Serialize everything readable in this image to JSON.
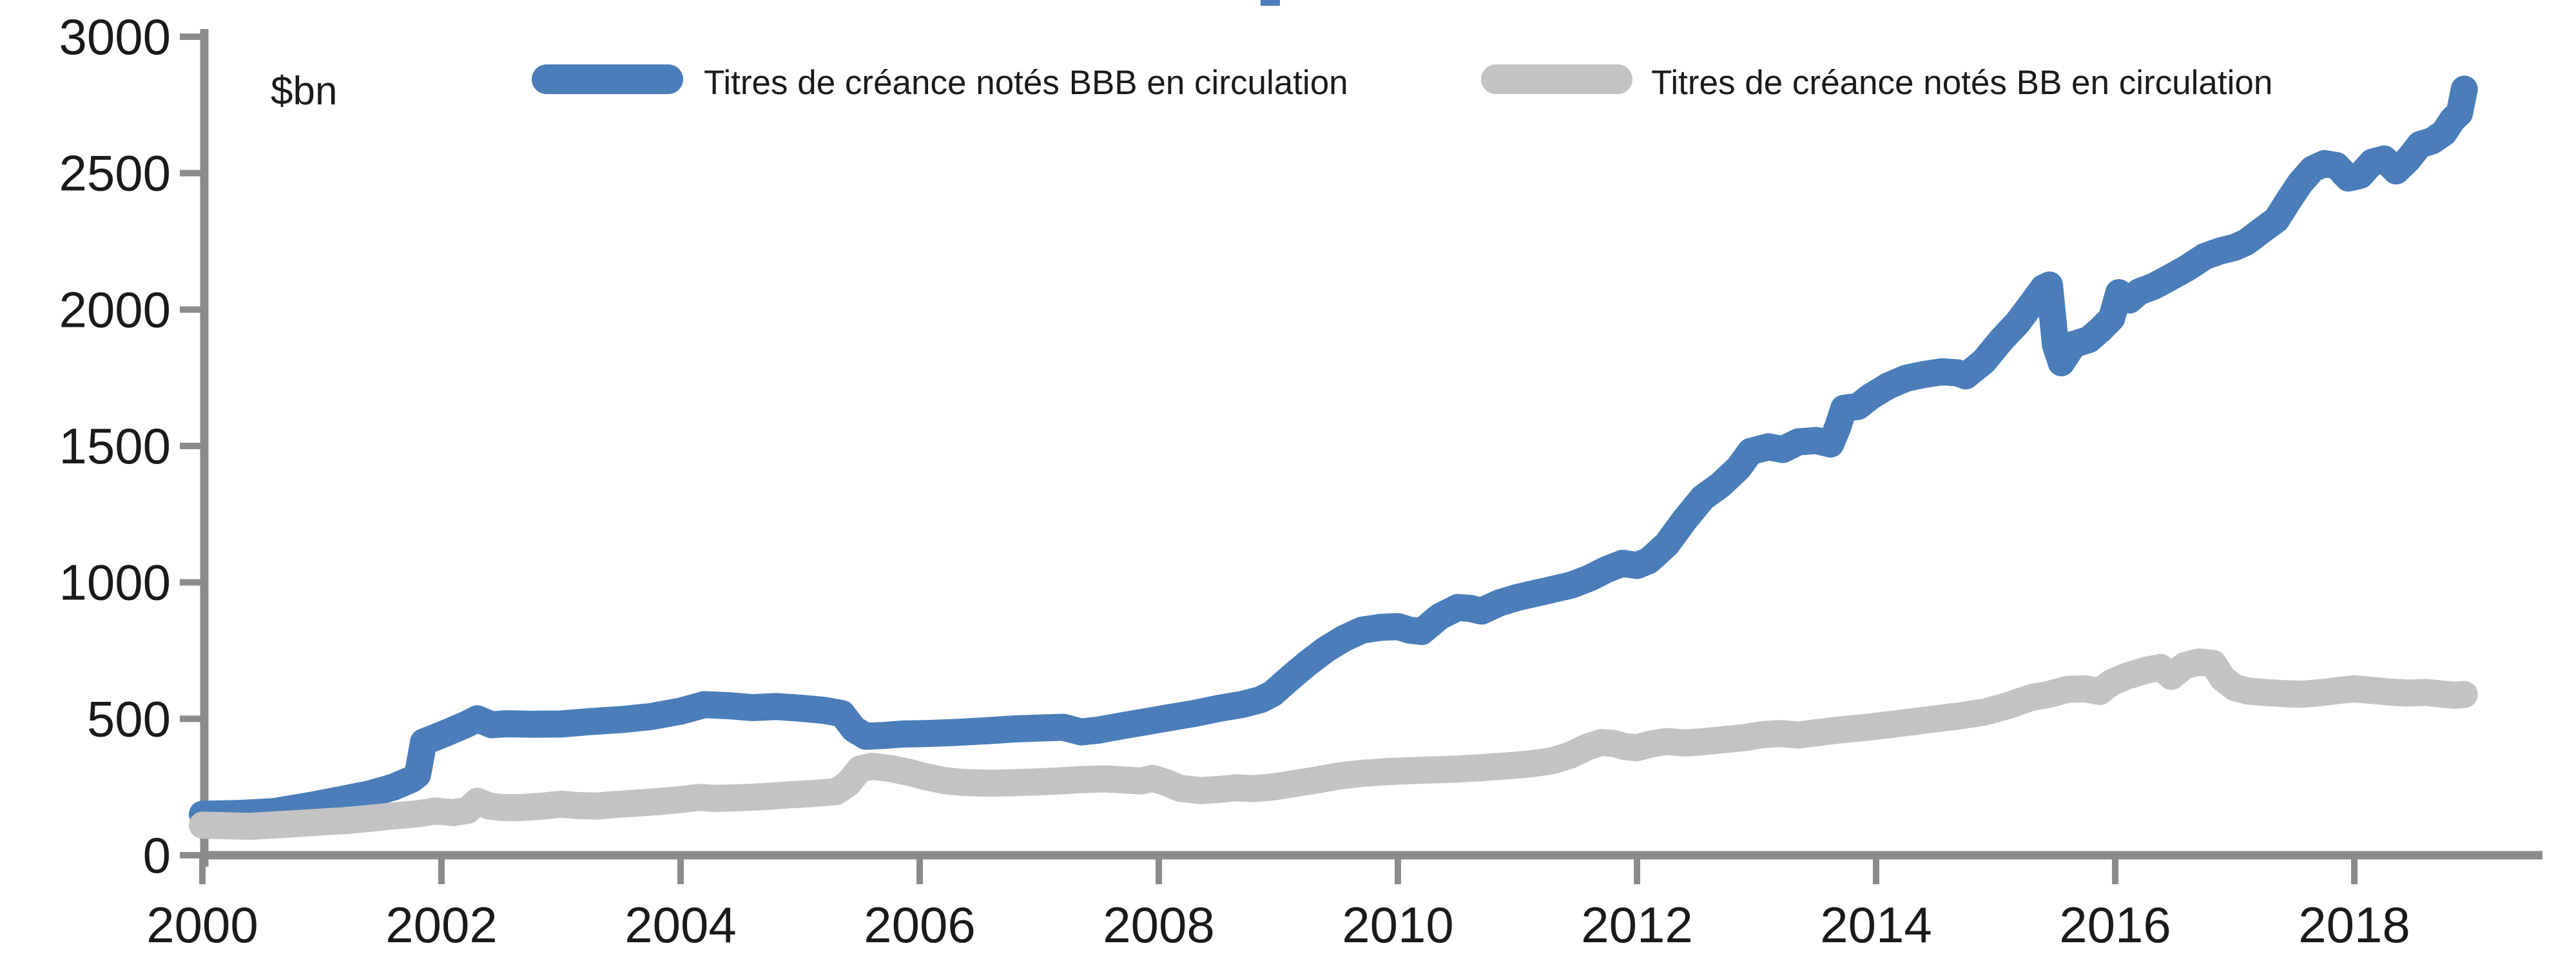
{
  "chart": {
    "colors": {
      "bbb_blue": "#4a7db9",
      "bb_gray": "#c3c3c3",
      "axis_gray": "#8b8b8b",
      "text": "#1a1a1a",
      "background": "#ffffff"
    },
    "artifact": "cropped-title-fragment"
  },
  "chart_data": {
    "type": "line",
    "title": "",
    "xlabel": "",
    "ylabel": "$bn",
    "xlim": [
      2000,
      2019.6
    ],
    "ylim": [
      0,
      3000
    ],
    "x_ticks": [
      2000,
      2002,
      2004,
      2006,
      2008,
      2010,
      2012,
      2014,
      2016,
      2018
    ],
    "y_ticks": [
      0,
      500,
      1000,
      1500,
      2000,
      2500,
      3000
    ],
    "grid": false,
    "legend_position": "top",
    "series": [
      {
        "name": "Titres de créance notés BBB en circulation",
        "color": "#4a7db9",
        "points": [
          [
            2000.0,
            150
          ],
          [
            2000.3,
            153
          ],
          [
            2000.6,
            160
          ],
          [
            2000.9,
            182
          ],
          [
            2001.15,
            203
          ],
          [
            2001.4,
            225
          ],
          [
            2001.6,
            250
          ],
          [
            2001.75,
            278
          ],
          [
            2001.8,
            295
          ],
          [
            2001.85,
            415
          ],
          [
            2001.95,
            432
          ],
          [
            2002.05,
            450
          ],
          [
            2002.2,
            478
          ],
          [
            2002.3,
            500
          ],
          [
            2002.42,
            478
          ],
          [
            2002.55,
            482
          ],
          [
            2002.75,
            480
          ],
          [
            2003.0,
            481
          ],
          [
            2003.25,
            490
          ],
          [
            2003.5,
            497
          ],
          [
            2003.75,
            508
          ],
          [
            2004.0,
            528
          ],
          [
            2004.2,
            552
          ],
          [
            2004.4,
            548
          ],
          [
            2004.6,
            541
          ],
          [
            2004.8,
            545
          ],
          [
            2005.0,
            539
          ],
          [
            2005.2,
            531
          ],
          [
            2005.35,
            519
          ],
          [
            2005.45,
            462
          ],
          [
            2005.55,
            436
          ],
          [
            2005.7,
            439
          ],
          [
            2005.85,
            444
          ],
          [
            2006.05,
            446
          ],
          [
            2006.3,
            450
          ],
          [
            2006.55,
            456
          ],
          [
            2006.8,
            463
          ],
          [
            2007.0,
            466
          ],
          [
            2007.2,
            469
          ],
          [
            2007.35,
            452
          ],
          [
            2007.5,
            459
          ],
          [
            2007.7,
            475
          ],
          [
            2007.9,
            490
          ],
          [
            2008.1,
            505
          ],
          [
            2008.3,
            520
          ],
          [
            2008.5,
            538
          ],
          [
            2008.7,
            553
          ],
          [
            2008.85,
            570
          ],
          [
            2008.95,
            592
          ],
          [
            2009.1,
            650
          ],
          [
            2009.25,
            705
          ],
          [
            2009.4,
            755
          ],
          [
            2009.55,
            795
          ],
          [
            2009.7,
            825
          ],
          [
            2009.85,
            835
          ],
          [
            2010.0,
            838
          ],
          [
            2010.1,
            825
          ],
          [
            2010.2,
            820
          ],
          [
            2010.35,
            875
          ],
          [
            2010.5,
            908
          ],
          [
            2010.6,
            905
          ],
          [
            2010.7,
            895
          ],
          [
            2010.85,
            925
          ],
          [
            2011.0,
            945
          ],
          [
            2011.15,
            960
          ],
          [
            2011.3,
            975
          ],
          [
            2011.45,
            990
          ],
          [
            2011.6,
            1015
          ],
          [
            2011.75,
            1048
          ],
          [
            2011.88,
            1070
          ],
          [
            2012.0,
            1062
          ],
          [
            2012.1,
            1080
          ],
          [
            2012.25,
            1140
          ],
          [
            2012.4,
            1230
          ],
          [
            2012.55,
            1310
          ],
          [
            2012.7,
            1358
          ],
          [
            2012.85,
            1420
          ],
          [
            2012.95,
            1480
          ],
          [
            2013.1,
            1497
          ],
          [
            2013.22,
            1487
          ],
          [
            2013.35,
            1515
          ],
          [
            2013.5,
            1520
          ],
          [
            2013.62,
            1507
          ],
          [
            2013.68,
            1570
          ],
          [
            2013.73,
            1638
          ],
          [
            2013.85,
            1645
          ],
          [
            2013.95,
            1680
          ],
          [
            2014.1,
            1720
          ],
          [
            2014.25,
            1748
          ],
          [
            2014.4,
            1762
          ],
          [
            2014.55,
            1772
          ],
          [
            2014.68,
            1768
          ],
          [
            2014.75,
            1757
          ],
          [
            2014.9,
            1810
          ],
          [
            2015.05,
            1890
          ],
          [
            2015.18,
            1950
          ],
          [
            2015.3,
            2020
          ],
          [
            2015.4,
            2080
          ],
          [
            2015.45,
            2090
          ],
          [
            2015.5,
            1870
          ],
          [
            2015.55,
            1805
          ],
          [
            2015.65,
            1872
          ],
          [
            2015.78,
            1890
          ],
          [
            2015.88,
            1928
          ],
          [
            2015.97,
            1968
          ],
          [
            2016.03,
            2062
          ],
          [
            2016.12,
            2035
          ],
          [
            2016.2,
            2065
          ],
          [
            2016.32,
            2085
          ],
          [
            2016.45,
            2115
          ],
          [
            2016.6,
            2152
          ],
          [
            2016.75,
            2195
          ],
          [
            2016.88,
            2215
          ],
          [
            2017.0,
            2228
          ],
          [
            2017.1,
            2248
          ],
          [
            2017.22,
            2288
          ],
          [
            2017.35,
            2330
          ],
          [
            2017.45,
            2400
          ],
          [
            2017.55,
            2465
          ],
          [
            2017.65,
            2515
          ],
          [
            2017.75,
            2535
          ],
          [
            2017.85,
            2528
          ],
          [
            2017.95,
            2482
          ],
          [
            2018.05,
            2492
          ],
          [
            2018.15,
            2540
          ],
          [
            2018.25,
            2552
          ],
          [
            2018.35,
            2508
          ],
          [
            2018.45,
            2550
          ],
          [
            2018.55,
            2605
          ],
          [
            2018.65,
            2618
          ],
          [
            2018.75,
            2648
          ],
          [
            2018.82,
            2695
          ],
          [
            2018.88,
            2720
          ],
          [
            2018.92,
            2808
          ]
        ]
      },
      {
        "name": "Titres de créance notés BB en circulation",
        "color": "#c3c3c3",
        "points": [
          [
            2000.0,
            110
          ],
          [
            2000.2,
            108
          ],
          [
            2000.4,
            106
          ],
          [
            2000.6,
            111
          ],
          [
            2000.8,
            116
          ],
          [
            2001.0,
            122
          ],
          [
            2001.2,
            127
          ],
          [
            2001.4,
            135
          ],
          [
            2001.6,
            144
          ],
          [
            2001.8,
            152
          ],
          [
            2001.95,
            162
          ],
          [
            2002.1,
            156
          ],
          [
            2002.22,
            165
          ],
          [
            2002.3,
            198
          ],
          [
            2002.4,
            180
          ],
          [
            2002.5,
            175
          ],
          [
            2002.65,
            174
          ],
          [
            2002.85,
            180
          ],
          [
            2003.0,
            187
          ],
          [
            2003.15,
            182
          ],
          [
            2003.3,
            180
          ],
          [
            2003.45,
            186
          ],
          [
            2003.6,
            190
          ],
          [
            2003.8,
            196
          ],
          [
            2004.0,
            204
          ],
          [
            2004.15,
            212
          ],
          [
            2004.3,
            208
          ],
          [
            2004.5,
            211
          ],
          [
            2004.7,
            215
          ],
          [
            2004.9,
            221
          ],
          [
            2005.1,
            226
          ],
          [
            2005.3,
            233
          ],
          [
            2005.4,
            262
          ],
          [
            2005.5,
            316
          ],
          [
            2005.6,
            326
          ],
          [
            2005.75,
            318
          ],
          [
            2005.9,
            305
          ],
          [
            2006.05,
            288
          ],
          [
            2006.2,
            274
          ],
          [
            2006.35,
            267
          ],
          [
            2006.55,
            264
          ],
          [
            2006.75,
            265
          ],
          [
            2006.95,
            268
          ],
          [
            2007.15,
            272
          ],
          [
            2007.35,
            277
          ],
          [
            2007.55,
            280
          ],
          [
            2007.7,
            276
          ],
          [
            2007.85,
            272
          ],
          [
            2007.95,
            282
          ],
          [
            2008.05,
            268
          ],
          [
            2008.18,
            245
          ],
          [
            2008.35,
            237
          ],
          [
            2008.5,
            241
          ],
          [
            2008.65,
            247
          ],
          [
            2008.8,
            244
          ],
          [
            2008.95,
            250
          ],
          [
            2009.1,
            260
          ],
          [
            2009.3,
            274
          ],
          [
            2009.5,
            290
          ],
          [
            2009.7,
            300
          ],
          [
            2009.9,
            306
          ],
          [
            2010.1,
            310
          ],
          [
            2010.3,
            313
          ],
          [
            2010.5,
            316
          ],
          [
            2010.7,
            321
          ],
          [
            2010.9,
            327
          ],
          [
            2011.1,
            334
          ],
          [
            2011.3,
            347
          ],
          [
            2011.45,
            368
          ],
          [
            2011.58,
            396
          ],
          [
            2011.7,
            413
          ],
          [
            2011.8,
            410
          ],
          [
            2011.9,
            398
          ],
          [
            2012.0,
            394
          ],
          [
            2012.12,
            408
          ],
          [
            2012.25,
            417
          ],
          [
            2012.4,
            411
          ],
          [
            2012.55,
            416
          ],
          [
            2012.72,
            423
          ],
          [
            2012.9,
            431
          ],
          [
            2013.05,
            442
          ],
          [
            2013.2,
            446
          ],
          [
            2013.35,
            440
          ],
          [
            2013.5,
            449
          ],
          [
            2013.65,
            457
          ],
          [
            2013.8,
            464
          ],
          [
            2013.95,
            470
          ],
          [
            2014.1,
            478
          ],
          [
            2014.3,
            489
          ],
          [
            2014.5,
            500
          ],
          [
            2014.7,
            511
          ],
          [
            2014.9,
            524
          ],
          [
            2015.1,
            548
          ],
          [
            2015.3,
            578
          ],
          [
            2015.45,
            590
          ],
          [
            2015.6,
            608
          ],
          [
            2015.75,
            610
          ],
          [
            2015.87,
            600
          ],
          [
            2015.97,
            633
          ],
          [
            2016.1,
            657
          ],
          [
            2016.25,
            677
          ],
          [
            2016.38,
            688
          ],
          [
            2016.47,
            655
          ],
          [
            2016.58,
            695
          ],
          [
            2016.7,
            708
          ],
          [
            2016.82,
            703
          ],
          [
            2016.9,
            648
          ],
          [
            2017.0,
            614
          ],
          [
            2017.12,
            601
          ],
          [
            2017.27,
            596
          ],
          [
            2017.42,
            592
          ],
          [
            2017.57,
            590
          ],
          [
            2017.72,
            596
          ],
          [
            2017.87,
            604
          ],
          [
            2018.0,
            610
          ],
          [
            2018.15,
            604
          ],
          [
            2018.3,
            598
          ],
          [
            2018.45,
            594
          ],
          [
            2018.6,
            597
          ],
          [
            2018.72,
            591
          ],
          [
            2018.85,
            586
          ],
          [
            2018.92,
            589
          ]
        ]
      }
    ]
  }
}
